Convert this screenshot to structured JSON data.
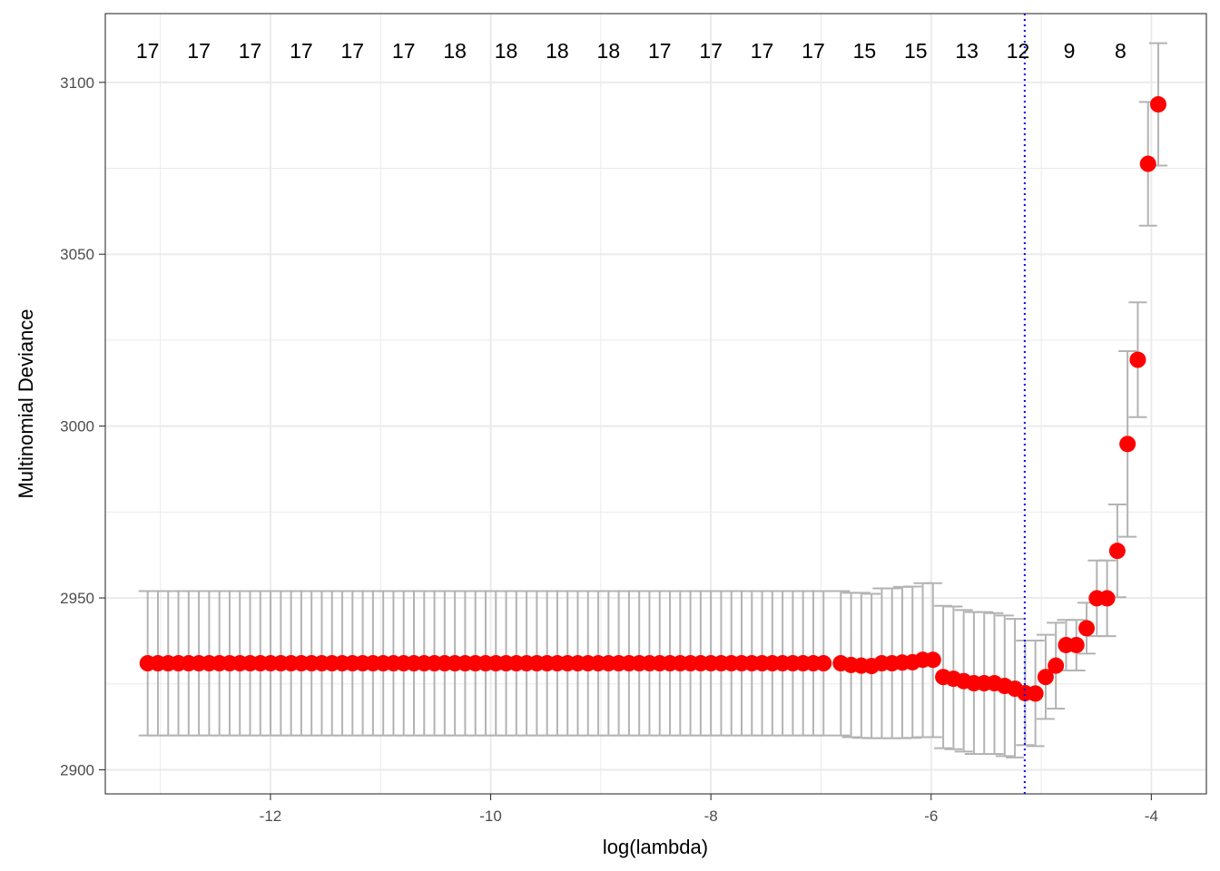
{
  "chart_data": {
    "type": "scatter",
    "title": "",
    "xlabel": "log(lambda)",
    "ylabel": "Multinomial Deviance",
    "xlim": [
      -13.5,
      -3.5
    ],
    "ylim": [
      2893,
      3120
    ],
    "x_ticks": [
      -12,
      -10,
      -8,
      -6,
      -4
    ],
    "x_tick_labels": [
      "-12",
      "-10",
      "-8",
      "-6",
      "-4"
    ],
    "y_ticks": [
      2900,
      2950,
      3000,
      3050,
      3100
    ],
    "y_tick_labels": [
      "2900",
      "2950",
      "3000",
      "3050",
      "3100"
    ],
    "grid": true,
    "vline": {
      "x": -5.15,
      "color": "#0000ff",
      "style": "dotted"
    },
    "colors": {
      "point": "#ff0000",
      "errorbar": "#b3b3b3",
      "grid": "#ebebeb"
    },
    "top_labels": [
      {
        "x": -13.115,
        "label": "17"
      },
      {
        "x": -12.65,
        "label": "17"
      },
      {
        "x": -12.185,
        "label": "17"
      },
      {
        "x": -11.72,
        "label": "17"
      },
      {
        "x": -11.255,
        "label": "17"
      },
      {
        "x": -10.79,
        "label": "17"
      },
      {
        "x": -10.325,
        "label": "18"
      },
      {
        "x": -9.86,
        "label": "18"
      },
      {
        "x": -9.395,
        "label": "18"
      },
      {
        "x": -8.93,
        "label": "18"
      },
      {
        "x": -8.465,
        "label": "17"
      },
      {
        "x": -8.0,
        "label": "17"
      },
      {
        "x": -7.535,
        "label": "17"
      },
      {
        "x": -7.07,
        "label": "17"
      },
      {
        "x": -6.605,
        "label": "15"
      },
      {
        "x": -6.14,
        "label": "15"
      },
      {
        "x": -5.675,
        "label": "13"
      },
      {
        "x": -5.21,
        "label": "12"
      },
      {
        "x": -4.745,
        "label": "9"
      },
      {
        "x": -4.28,
        "label": "8"
      }
    ],
    "flat_segment": {
      "x_start": -13.115,
      "x_end": -6.9,
      "step": 0.093,
      "y": 2931,
      "ylow": 2910,
      "yhigh": 2952
    },
    "points": [
      {
        "x": -6.82,
        "y": 2931,
        "ylow": 2910,
        "yhigh": 2952
      },
      {
        "x": -6.727,
        "y": 2930.5,
        "ylow": 2909.5,
        "yhigh": 2951.5
      },
      {
        "x": -6.634,
        "y": 2930.3,
        "ylow": 2909.3,
        "yhigh": 2951.5
      },
      {
        "x": -6.541,
        "y": 2930.2,
        "ylow": 2909.2,
        "yhigh": 2951.2
      },
      {
        "x": -6.448,
        "y": 2931,
        "ylow": 2909.2,
        "yhigh": 2952.8
      },
      {
        "x": -6.355,
        "y": 2931,
        "ylow": 2909.2,
        "yhigh": 2952.8
      },
      {
        "x": -6.262,
        "y": 2931.2,
        "ylow": 2909.2,
        "yhigh": 2953.2
      },
      {
        "x": -6.169,
        "y": 2931.3,
        "ylow": 2909.3,
        "yhigh": 2953.3
      },
      {
        "x": -6.076,
        "y": 2932,
        "ylow": 2909.5,
        "yhigh": 2954.3
      },
      {
        "x": -5.983,
        "y": 2932,
        "ylow": 2909.5,
        "yhigh": 2954.3
      },
      {
        "x": -5.89,
        "y": 2927,
        "ylow": 2906.3,
        "yhigh": 2947.7
      },
      {
        "x": -5.797,
        "y": 2926.5,
        "ylow": 2906,
        "yhigh": 2947.5
      },
      {
        "x": -5.704,
        "y": 2925.8,
        "ylow": 2905.3,
        "yhigh": 2946.5
      },
      {
        "x": -5.611,
        "y": 2925.2,
        "ylow": 2904.6,
        "yhigh": 2945.9
      },
      {
        "x": -5.518,
        "y": 2925.2,
        "ylow": 2904.6,
        "yhigh": 2945.9
      },
      {
        "x": -5.425,
        "y": 2925.2,
        "ylow": 2904.6,
        "yhigh": 2945.6
      },
      {
        "x": -5.332,
        "y": 2924.4,
        "ylow": 2904,
        "yhigh": 2944.9
      },
      {
        "x": -5.239,
        "y": 2923.6,
        "ylow": 2903.6,
        "yhigh": 2943.9
      },
      {
        "x": -5.146,
        "y": 2922.3,
        "ylow": 2907.2,
        "yhigh": 2937.6
      },
      {
        "x": -5.053,
        "y": 2922.2,
        "ylow": 2906.9,
        "yhigh": 2937.6
      },
      {
        "x": -4.96,
        "y": 2927,
        "ylow": 2914.8,
        "yhigh": 2939.3
      },
      {
        "x": -4.867,
        "y": 2930.3,
        "ylow": 2917.8,
        "yhigh": 2942.8
      },
      {
        "x": -4.774,
        "y": 2936.3,
        "ylow": 2928.9,
        "yhigh": 2943.6
      },
      {
        "x": -4.681,
        "y": 2936.3,
        "ylow": 2928.9,
        "yhigh": 2943.6
      },
      {
        "x": -4.588,
        "y": 2941.2,
        "ylow": 2933.8,
        "yhigh": 2948.6
      },
      {
        "x": -4.495,
        "y": 2949.9,
        "ylow": 2938.9,
        "yhigh": 2960.9
      },
      {
        "x": -4.402,
        "y": 2949.9,
        "ylow": 2938.9,
        "yhigh": 2960.9
      },
      {
        "x": -4.309,
        "y": 2963.7,
        "ylow": 2950.2,
        "yhigh": 2977.2
      },
      {
        "x": -4.216,
        "y": 2994.8,
        "ylow": 2967.8,
        "yhigh": 3021.8
      },
      {
        "x": -4.123,
        "y": 3019.3,
        "ylow": 3002.6,
        "yhigh": 3036
      },
      {
        "x": -4.03,
        "y": 3076.3,
        "ylow": 3058.3,
        "yhigh": 3094.3
      },
      {
        "x": -3.937,
        "y": 3093.6,
        "ylow": 3075.8,
        "yhigh": 3111.4
      }
    ]
  }
}
